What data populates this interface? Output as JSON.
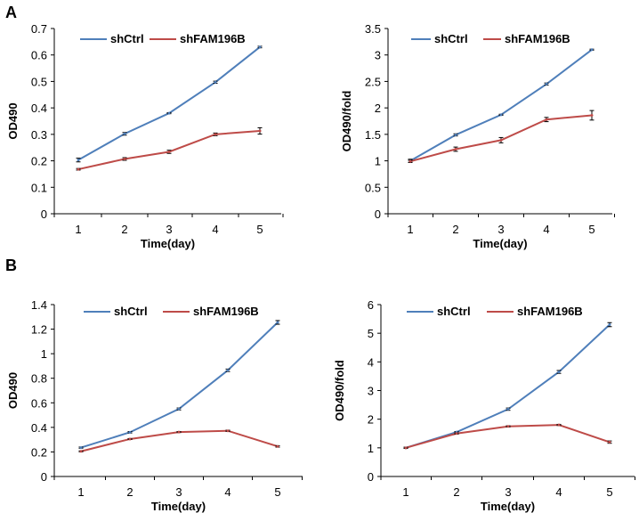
{
  "panel_labels": [
    "A",
    "B"
  ],
  "colors": {
    "shCtrl": "#4f7fba",
    "shFAM196B": "#be4b48"
  },
  "chart_data": [
    {
      "type": "line",
      "panel": "A",
      "title": "",
      "xlabel": "Time(day)",
      "ylabel": "OD490",
      "x": [
        1,
        2,
        3,
        4,
        5
      ],
      "xticks": [
        "1",
        "2",
        "3",
        "4",
        "5"
      ],
      "ylim": [
        0,
        0.7
      ],
      "yticks": [
        "0",
        "0.1",
        "0.2",
        "0.3",
        "0.4",
        "0.5",
        "0.6",
        "0.7"
      ],
      "legend": "top",
      "series": [
        {
          "name": "shCtrl",
          "values": [
            0.203,
            0.302,
            0.38,
            0.497,
            0.63
          ],
          "errors": [
            0.007,
            0.005,
            0.002,
            0.004,
            0.003
          ]
        },
        {
          "name": "shFAM196B",
          "values": [
            0.168,
            0.207,
            0.234,
            0.3,
            0.313
          ],
          "errors": [
            0.003,
            0.005,
            0.006,
            0.005,
            0.012
          ]
        }
      ]
    },
    {
      "type": "line",
      "panel": "A",
      "title": "",
      "xlabel": "Time(day)",
      "ylabel": "OD490/fold",
      "x": [
        1,
        2,
        3,
        4,
        5
      ],
      "xticks": [
        "1",
        "2",
        "3",
        "4",
        "5"
      ],
      "ylim": [
        0,
        3.5
      ],
      "yticks": [
        "0",
        "0.5",
        "1",
        "1.5",
        "2",
        "2.5",
        "3",
        "3.5"
      ],
      "legend": "top",
      "series": [
        {
          "name": "shCtrl",
          "values": [
            1.0,
            1.49,
            1.87,
            2.45,
            3.1
          ],
          "errors": [
            0.03,
            0.02,
            0.01,
            0.02,
            0.01
          ]
        },
        {
          "name": "shFAM196B",
          "values": [
            0.99,
            1.22,
            1.39,
            1.78,
            1.86
          ],
          "errors": [
            0.02,
            0.04,
            0.05,
            0.04,
            0.09
          ]
        }
      ]
    },
    {
      "type": "line",
      "panel": "B",
      "title": "",
      "xlabel": "Time(day)",
      "ylabel": "OD490",
      "x": [
        1,
        2,
        3,
        4,
        5
      ],
      "xticks": [
        "1",
        "2",
        "3",
        "4",
        "5"
      ],
      "ylim": [
        0,
        1.4
      ],
      "yticks": [
        "0",
        "0.2",
        "0.4",
        "0.6",
        "0.8",
        "1",
        "1.2",
        "1.4"
      ],
      "legend": "top",
      "series": [
        {
          "name": "shCtrl",
          "values": [
            0.235,
            0.36,
            0.55,
            0.865,
            1.255
          ],
          "errors": [
            0.005,
            0.006,
            0.008,
            0.01,
            0.015
          ]
        },
        {
          "name": "shFAM196B",
          "values": [
            0.205,
            0.305,
            0.362,
            0.372,
            0.245
          ],
          "errors": [
            0.004,
            0.004,
            0.004,
            0.005,
            0.006
          ]
        }
      ]
    },
    {
      "type": "line",
      "panel": "B",
      "title": "",
      "xlabel": "Time(day)",
      "ylabel": "OD490/fold",
      "x": [
        1,
        2,
        3,
        4,
        5
      ],
      "xticks": [
        "1",
        "2",
        "3",
        "4",
        "5"
      ],
      "ylim": [
        0,
        6
      ],
      "yticks": [
        "0",
        "1",
        "2",
        "3",
        "4",
        "5",
        "6"
      ],
      "legend": "top",
      "series": [
        {
          "name": "shCtrl",
          "values": [
            1.0,
            1.55,
            2.35,
            3.65,
            5.3
          ],
          "errors": [
            0.02,
            0.02,
            0.04,
            0.05,
            0.07
          ]
        },
        {
          "name": "shFAM196B",
          "values": [
            1.0,
            1.5,
            1.75,
            1.8,
            1.2
          ],
          "errors": [
            0.02,
            0.02,
            0.02,
            0.02,
            0.04
          ]
        }
      ]
    }
  ]
}
